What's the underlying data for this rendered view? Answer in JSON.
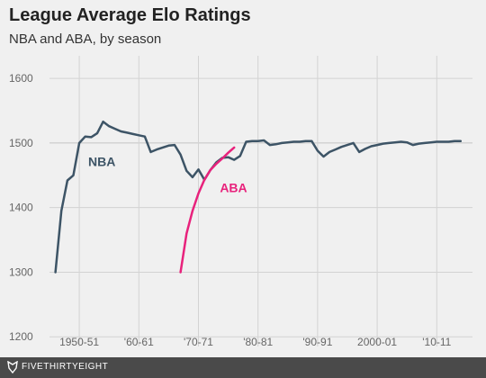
{
  "header": {
    "title": "League Average Elo Ratings",
    "subtitle": "NBA and ABA, by season"
  },
  "footer": {
    "brand": "FIVETHIRTYEIGHT",
    "logo_icon": "fox-icon"
  },
  "colors": {
    "background": "#f0f0f0",
    "grid": "#d3d3d3",
    "nba": "#3d5466",
    "aba": "#e8227c",
    "footer": "#4a4a4a"
  },
  "chart_data": {
    "type": "line",
    "title": "League Average Elo Ratings",
    "subtitle": "NBA and ABA, by season",
    "xlabel": "",
    "ylabel": "",
    "xlim": [
      1945,
      2016
    ],
    "ylim": [
      1185,
      1635
    ],
    "yticks": [
      1200,
      1300,
      1400,
      1500,
      1600
    ],
    "xticks": [
      {
        "x": 1950,
        "label": "1950-51"
      },
      {
        "x": 1960,
        "label": "'60-61"
      },
      {
        "x": 1970,
        "label": "'70-71"
      },
      {
        "x": 1980,
        "label": "'80-81"
      },
      {
        "x": 1990,
        "label": "'90-91"
      },
      {
        "x": 2000,
        "label": "2000-01"
      },
      {
        "x": 2010,
        "label": "'10-11"
      }
    ],
    "grid": true,
    "series": [
      {
        "name": "NBA",
        "color": "#3d5466",
        "x": [
          1946,
          1947,
          1948,
          1949,
          1950,
          1951,
          1952,
          1953,
          1954,
          1955,
          1956,
          1957,
          1958,
          1959,
          1960,
          1961,
          1962,
          1963,
          1964,
          1965,
          1966,
          1967,
          1968,
          1969,
          1970,
          1971,
          1972,
          1973,
          1974,
          1975,
          1976,
          1977,
          1978,
          1979,
          1980,
          1981,
          1982,
          1983,
          1984,
          1985,
          1986,
          1987,
          1988,
          1989,
          1990,
          1991,
          1992,
          1993,
          1994,
          1995,
          1996,
          1997,
          1998,
          1999,
          2000,
          2001,
          2002,
          2003,
          2004,
          2005,
          2006,
          2007,
          2008,
          2009,
          2010,
          2011,
          2012,
          2013,
          2014
        ],
        "values": [
          1300,
          1395,
          1442,
          1450,
          1500,
          1510,
          1509,
          1515,
          1533,
          1526,
          1522,
          1518,
          1516,
          1514,
          1512,
          1510,
          1486,
          1490,
          1493,
          1496,
          1497,
          1482,
          1457,
          1447,
          1459,
          1443,
          1458,
          1470,
          1477,
          1478,
          1474,
          1480,
          1502,
          1503,
          1503,
          1504,
          1497,
          1498,
          1500,
          1501,
          1502,
          1502,
          1503,
          1503,
          1488,
          1479,
          1486,
          1490,
          1494,
          1497,
          1500,
          1486,
          1491,
          1495,
          1497,
          1499,
          1500,
          1501,
          1502,
          1501,
          1497,
          1499,
          1500,
          1501,
          1502,
          1502,
          1502,
          1503,
          1503
        ]
      },
      {
        "name": "ABA",
        "color": "#e8227c",
        "x": [
          1967,
          1968,
          1969,
          1970,
          1971,
          1972,
          1973,
          1974,
          1975,
          1976
        ],
        "values": [
          1300,
          1360,
          1395,
          1422,
          1443,
          1458,
          1468,
          1476,
          1485,
          1493
        ]
      }
    ],
    "annotations": [
      {
        "text": "NBA",
        "x": 1951.5,
        "y": 1464,
        "color": "#3d5466"
      },
      {
        "text": "ABA",
        "x": 1973.6,
        "y": 1424,
        "color": "#e8227c"
      }
    ]
  }
}
